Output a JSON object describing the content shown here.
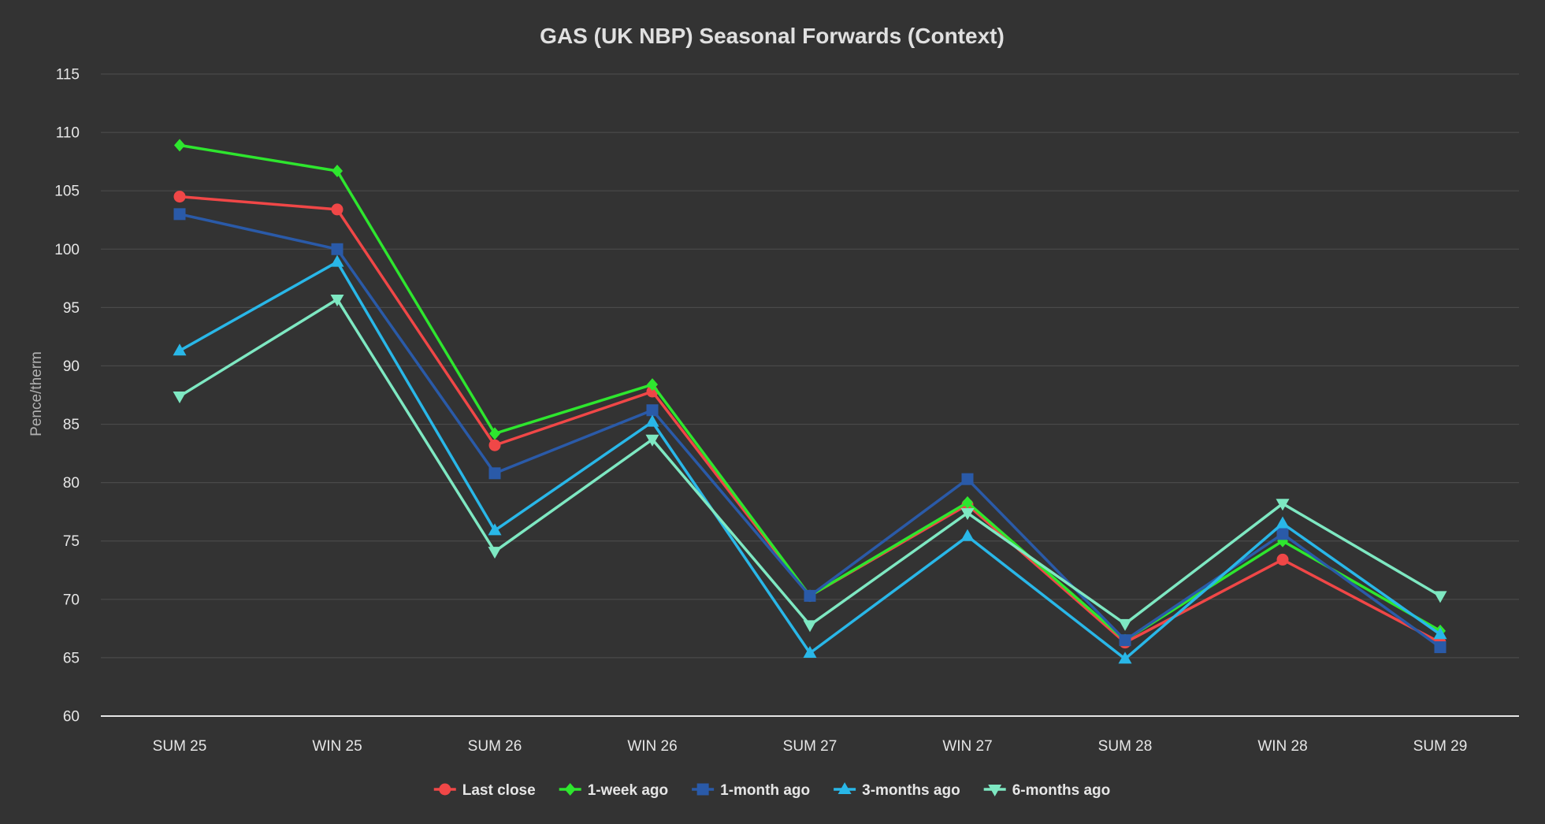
{
  "chart_data": {
    "type": "line",
    "title": "GAS (UK NBP) Seasonal Forwards (Context)",
    "xlabel": "",
    "ylabel": "Pence/therm",
    "ylim": [
      60,
      115
    ],
    "yticks": [
      60,
      65,
      70,
      75,
      80,
      85,
      90,
      95,
      100,
      105,
      110,
      115
    ],
    "grid": true,
    "legend_position": "bottom-center",
    "background": "#333333",
    "categories": [
      "SUM 25",
      "WIN 25",
      "SUM 26",
      "WIN 26",
      "SUM 27",
      "WIN 27",
      "SUM 28",
      "WIN 28",
      "SUM 29"
    ],
    "series": [
      {
        "name": "Last close",
        "color": "#f04747",
        "marker": "circle",
        "values": [
          104.5,
          103.4,
          83.2,
          87.8,
          70.3,
          78.1,
          66.3,
          73.4,
          66.3
        ]
      },
      {
        "name": "1-week ago",
        "color": "#2ee62e",
        "marker": "diamond",
        "values": [
          108.9,
          106.7,
          84.2,
          88.4,
          70.3,
          78.3,
          66.5,
          75.0,
          67.3
        ]
      },
      {
        "name": "1-month ago",
        "color": "#2a5aa8",
        "marker": "square",
        "values": [
          103.0,
          100.0,
          80.8,
          86.2,
          70.3,
          80.3,
          66.5,
          75.6,
          65.9
        ]
      },
      {
        "name": "3-months ago",
        "color": "#29b7e8",
        "marker": "triangle-up",
        "values": [
          91.3,
          98.9,
          75.9,
          85.2,
          65.4,
          75.4,
          64.9,
          76.5,
          67.0
        ]
      },
      {
        "name": "6-months ago",
        "color": "#7ee8c2",
        "marker": "triangle-down",
        "values": [
          87.4,
          95.7,
          74.1,
          83.7,
          67.8,
          77.4,
          67.9,
          78.2,
          70.3
        ]
      }
    ]
  }
}
